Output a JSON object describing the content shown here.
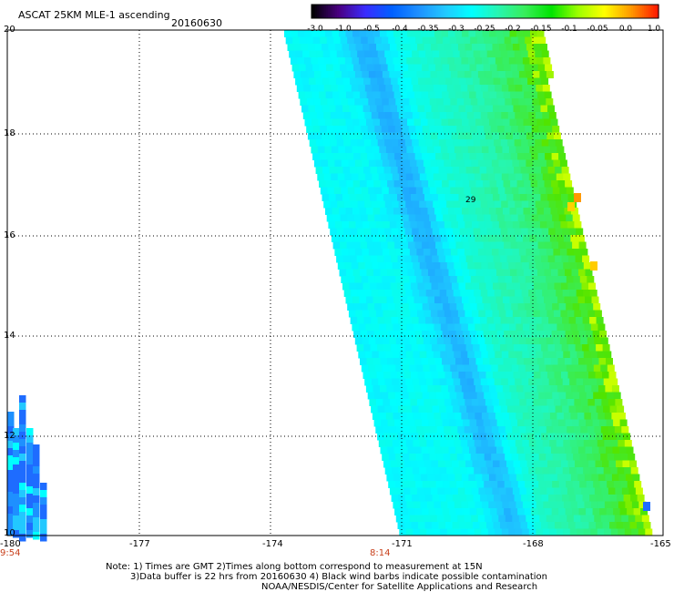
{
  "header": {
    "title": "ASCAT 25KM MLE-1 ascending",
    "date": "20160630"
  },
  "colorbar": {
    "ticks": [
      "-3.0",
      "-1.0",
      "-0.5",
      "-0.4",
      "-0.35",
      "-0.3",
      "-0.25",
      "-0.2",
      "-0.15",
      "-0.1",
      "-0.05",
      "0.0",
      "1.0"
    ],
    "colors": [
      "#000000",
      "#4b0082",
      "#3a2cff",
      "#0060ff",
      "#1e90ff",
      "#22c8ff",
      "#00ffff",
      "#27f5b0",
      "#38ee5a",
      "#00e400",
      "#9cff00",
      "#ffff00",
      "#ff9900",
      "#ff1a00"
    ]
  },
  "map": {
    "lat_labels": [
      "20",
      "18",
      "16",
      "14",
      "12",
      "10"
    ],
    "lon_labels": [
      "-180",
      "-177",
      "-174",
      "-171",
      "-168",
      "-165"
    ],
    "time_labels": [
      "9:54",
      "8:14"
    ],
    "annotation": "29"
  },
  "notes": {
    "line1": "Note: 1) Times are GMT 2)Times along bottom correspond to measurement at 15N",
    "line2": "3)Data buffer is 22 hrs from 20160630 4) Black wind barbs indicate possible contamination",
    "line3": "NOAA/NESDIS/Center for Satellite Applications and Research"
  }
}
